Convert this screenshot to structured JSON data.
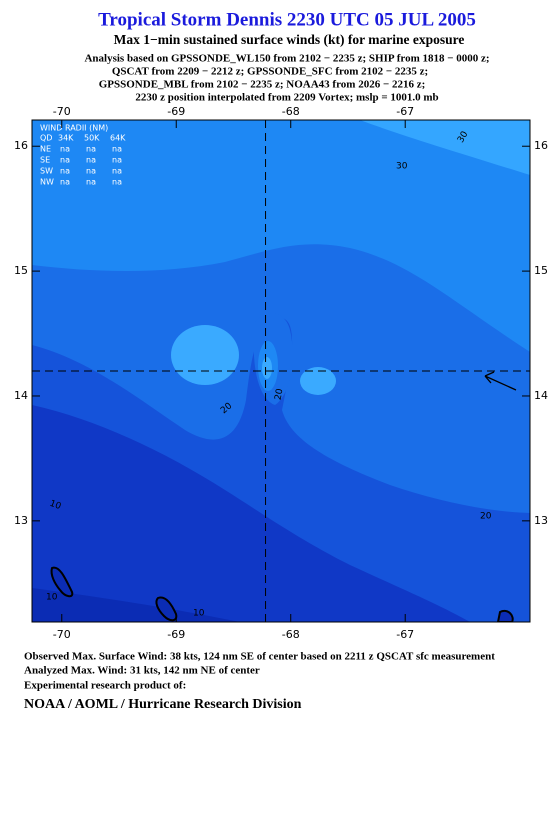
{
  "header": {
    "title": "Tropical Storm Dennis 2230 UTC 05 JUL 2005",
    "subtitle": "Max 1−min sustained surface winds (kt) for marine exposure",
    "analysis": [
      "Analysis based on  GPSSONDE_WL150 from 2102 − 2235 z;  SHIP from 1818 − 0000 z;",
      "QSCAT from 2209 − 2212 z;  GPSSONDE_SFC from 2102 − 2235 z;",
      "GPSSONDE_MBL from 2102 − 2235 z;  NOAA43 from 2026 − 2216 z;",
      "2230 z position interpolated from 2209 Vortex; mslp = 1001.0 mb"
    ]
  },
  "map": {
    "xlim": [
      -70.26,
      -65.91
    ],
    "ylim": [
      12.19,
      16.21
    ],
    "xticks": [
      -70,
      -69,
      -68,
      -67
    ],
    "yticks": [
      13,
      14,
      15,
      16
    ],
    "center": {
      "lon": -68.22,
      "lat": 14.2
    },
    "contour_labels": [
      30,
      30,
      20,
      20,
      20,
      10,
      10,
      10
    ],
    "wind_radii": {
      "title": "WIND RADII (NM)",
      "columns": [
        "QD",
        "34K",
        "50K",
        "64K"
      ],
      "rows": [
        [
          "NE",
          "na",
          "na",
          "na"
        ],
        [
          "SE",
          "na",
          "na",
          "na"
        ],
        [
          "SW",
          "na",
          "na",
          "na"
        ],
        [
          "NW",
          "na",
          "na",
          "na"
        ]
      ]
    }
  },
  "footer": {
    "lines": [
      "Observed Max. Surface Wind: 38 kts, 124 nm SE of center based on 2211 z QSCAT sfc measurement",
      "Analyzed Max. Wind: 31 kts, 142 nm NE of center",
      "Experimental research product of:"
    ],
    "organization": "NOAA / AOML / Hurricane Research Division"
  }
}
